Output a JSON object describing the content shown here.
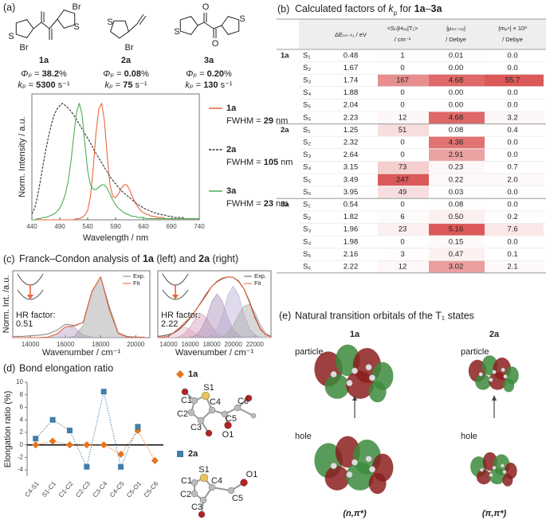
{
  "panel_labels": [
    "(a)",
    "(b)",
    "(c)",
    "(d)",
    "(e)"
  ],
  "panel_a": {
    "compounds": [
      {
        "label": "1a",
        "atoms": [
          "Br",
          "S",
          "S",
          "Br"
        ],
        "phi_symbol": "Φₚ",
        "phi_eq": " = ",
        "phi": "38.2",
        "phi_unit": "%",
        "k_symbol": "kₚ",
        "k_eq": " = ",
        "k": "5300",
        "k_unit": " s⁻¹"
      },
      {
        "label": "2a",
        "atoms": [
          "S",
          "Br"
        ],
        "phi_symbol": "Φₚ",
        "phi_eq": " = ",
        "phi": "0.08",
        "phi_unit": "%",
        "k_symbol": "kₚ",
        "k_eq": " = ",
        "k": "75",
        "k_unit": " s⁻¹"
      },
      {
        "label": "3a",
        "atoms": [
          "O",
          "S",
          "S",
          "O"
        ],
        "phi_symbol": "Φₚ",
        "phi_eq": " = ",
        "phi": "0.20",
        "phi_unit": "%",
        "k_symbol": "kₚ",
        "k_eq": " = ",
        "k": "130",
        "k_unit": " s⁻¹"
      }
    ]
  },
  "table": {
    "title_parts": [
      "Calculated factors of ",
      "k",
      "p",
      " for ",
      "1a",
      "–",
      "3a"
    ],
    "columns": [
      {
        "line1": "ΔEₛₙ₋ₜ₁ / eV"
      },
      {
        "line1": "<Sₙ|Hₛₒ|T₁>",
        "line2": "/ cm⁻¹"
      },
      {
        "line1": "|μₛₙ₋ₛ₀|",
        "line2": "/ Debye"
      },
      {
        "line1": "|mₚⁿ| × 10³",
        "line2": "/ Debye"
      }
    ],
    "groups": [
      {
        "label": "1a",
        "rows": [
          [
            "S₁",
            "0.48",
            "1",
            "0.01",
            "0.0"
          ],
          [
            "S₂",
            "1.67",
            "0",
            "0.00",
            "0.0"
          ],
          [
            "S₃",
            "1.74",
            "167",
            "4.68",
            "55.7"
          ],
          [
            "S₄",
            "1.88",
            "0",
            "0.00",
            "0.0"
          ],
          [
            "S₅",
            "2.04",
            "0",
            "0.00",
            "0.0"
          ],
          [
            "S₆",
            "2.23",
            "12",
            "4.68",
            "3.2"
          ]
        ]
      },
      {
        "label": "2a",
        "rows": [
          [
            "S₁",
            "1.25",
            "51",
            "0.08",
            "0.4"
          ],
          [
            "S₂",
            "2.32",
            "0",
            "4.36",
            "0.0"
          ],
          [
            "S₃",
            "2.64",
            "0",
            "2.91",
            "0.0"
          ],
          [
            "S₄",
            "3.15",
            "73",
            "0.23",
            "0.7"
          ],
          [
            "S₅",
            "3.49",
            "247",
            "0.22",
            "2.0"
          ],
          [
            "S₆",
            "3.95",
            "49",
            "0.03",
            "0.0"
          ]
        ]
      },
      {
        "label": "3a",
        "rows": [
          [
            "S₁",
            "0.54",
            "0",
            "0.08",
            "0.0"
          ],
          [
            "S₂",
            "1.82",
            "6",
            "0.50",
            "0.2"
          ],
          [
            "S₃",
            "1.96",
            "23",
            "5.16",
            "7.6"
          ],
          [
            "S₄",
            "1.98",
            "0",
            "0.15",
            "0.0"
          ],
          [
            "S₅",
            "2.16",
            "3",
            "0.47",
            "0.1"
          ],
          [
            "S₆",
            "2.22",
            "12",
            "3.02",
            "2.1"
          ]
        ]
      }
    ]
  },
  "panel_c": {
    "title_parts": [
      "Franck–Condon analysis of ",
      "1a",
      " (left) and ",
      "2a",
      " (right)"
    ],
    "hr_label": "HR factor:",
    "hr_values": [
      0.51,
      2.22
    ]
  },
  "panel_d": {
    "title": "Bond elongation ratio",
    "atoms_1a": [
      "C1",
      "S1",
      "C2",
      "C3",
      "C4",
      "C5",
      "C6",
      "O1"
    ],
    "atoms_2a": [
      "S1",
      "C1",
      "C4",
      "C2",
      "C3",
      "C5",
      "O1"
    ]
  },
  "panel_e": {
    "title": "Natural transition orbitals of the T₁ states",
    "columns": [
      {
        "label": "1a",
        "particle": "particle",
        "hole": "hole",
        "character": "(n,π*)"
      },
      {
        "label": "2a",
        "particle": "particle",
        "hole": "hole",
        "character": "(π,π*)"
      }
    ]
  },
  "chart_data": [
    {
      "type": "line",
      "xlabel": "Wavelength / nm",
      "ylabel": "Norm. Intensity / a.u.",
      "x": [
        440,
        445,
        450,
        455,
        460,
        465,
        470,
        475,
        480,
        485,
        490,
        495,
        500,
        505,
        510,
        515,
        520,
        525,
        530,
        535,
        540,
        545,
        550,
        555,
        560,
        565,
        570,
        575,
        580,
        585,
        590,
        595,
        600,
        605,
        610,
        615,
        620,
        625,
        630,
        635,
        640,
        645,
        650,
        655,
        660,
        665,
        670,
        675,
        680,
        685,
        690,
        695,
        700,
        705,
        710,
        715,
        720,
        725,
        730,
        735,
        740
      ],
      "xlim": [
        440,
        740
      ],
      "xticks": [
        440,
        490,
        540,
        590,
        640,
        690,
        740
      ],
      "ylim": [
        0,
        1.08
      ],
      "series": [
        {
          "name": "1a",
          "color": "#e8663c",
          "line_style": "solid",
          "legend_text": "FWHM = ",
          "fwhm": 29,
          "fwhm_unit": " nm",
          "values": [
            0,
            0,
            0,
            0,
            0,
            0,
            0,
            0,
            0,
            0,
            0,
            0,
            0,
            0,
            0,
            0,
            0.01,
            0.01,
            0.02,
            0.04,
            0.08,
            0.2,
            0.45,
            0.75,
            0.95,
            1.0,
            0.85,
            0.55,
            0.3,
            0.2,
            0.19,
            0.22,
            0.27,
            0.3,
            0.3,
            0.26,
            0.2,
            0.15,
            0.11,
            0.08,
            0.06,
            0.05,
            0.04,
            0.03,
            0.03,
            0.02,
            0.02,
            0.02,
            0.01,
            0.01,
            0.01,
            0.01,
            0.01,
            0.01,
            0.01,
            0.01,
            0.01,
            0.01,
            0.01,
            0.01,
            0.01
          ]
        },
        {
          "name": "2a",
          "color": "#333333",
          "line_style": "dashed",
          "legend_text": "FWHM = ",
          "fwhm": 105,
          "fwhm_unit": " nm",
          "values": [
            0.05,
            0.1,
            0.2,
            0.33,
            0.47,
            0.6,
            0.72,
            0.82,
            0.9,
            0.95,
            0.98,
            1.0,
            0.98,
            0.96,
            0.93,
            0.9,
            0.86,
            0.82,
            0.78,
            0.74,
            0.7,
            0.66,
            0.61,
            0.57,
            0.53,
            0.49,
            0.45,
            0.41,
            0.37,
            0.34,
            0.31,
            0.28,
            0.25,
            0.23,
            0.21,
            0.19,
            0.17,
            0.15,
            0.13,
            0.12,
            0.1,
            0.09,
            0.08,
            0.07,
            0.06,
            0.05,
            0.05,
            0.04,
            0.04,
            0.03,
            0.03,
            0.02,
            0.02,
            0.02,
            0.02,
            0.01,
            0.01,
            0.01,
            0.01,
            0.01,
            0.01
          ]
        },
        {
          "name": "3a",
          "color": "#4caf50",
          "line_style": "solid",
          "legend_text": "FWHM = ",
          "fwhm": 23,
          "fwhm_unit": " nm",
          "values": [
            0,
            0,
            0.01,
            0.01,
            0.02,
            0.02,
            0.03,
            0.04,
            0.05,
            0.07,
            0.1,
            0.15,
            0.22,
            0.33,
            0.5,
            0.72,
            0.92,
            1.0,
            0.9,
            0.65,
            0.42,
            0.3,
            0.26,
            0.26,
            0.28,
            0.3,
            0.3,
            0.27,
            0.22,
            0.17,
            0.13,
            0.1,
            0.08,
            0.06,
            0.05,
            0.04,
            0.03,
            0.03,
            0.02,
            0.02,
            0.02,
            0.01,
            0.01,
            0.01,
            0.01,
            0.01,
            0.01,
            0.01,
            0.01,
            0.01,
            0.01,
            0.01,
            0.01,
            0.01,
            0.01,
            0.01,
            0.01,
            0.01,
            0.01,
            0.01,
            0.01
          ]
        }
      ]
    },
    {
      "type": "line",
      "xlabel": "Wavenumber / cm⁻¹",
      "ylabel": "Norm. Int. /a.u.",
      "x": [
        13000,
        13500,
        14000,
        14500,
        15000,
        15500,
        16000,
        16500,
        17000,
        17500,
        18000,
        18500,
        19000,
        19500,
        20000,
        20500
      ],
      "xlim": [
        13000,
        20800
      ],
      "xticks": [
        14000,
        16000,
        18000,
        20000
      ],
      "ylim": [
        0,
        1.1
      ],
      "series": [
        {
          "color": "#b39cc8",
          "fill": true,
          "values": [
            0,
            0,
            0,
            0,
            0.01,
            0.06,
            0.18,
            0.17,
            0.05,
            0.01,
            0,
            0,
            0,
            0,
            0,
            0
          ]
        },
        {
          "color": "#a0a0a0",
          "fill": true,
          "values": [
            0,
            0,
            0,
            0,
            0,
            0,
            0,
            0.02,
            0.2,
            0.75,
            1.0,
            0.45,
            0.07,
            0.01,
            0,
            0
          ]
        },
        {
          "name": "Exp.",
          "color": "#8a8a8a",
          "values": [
            0.02,
            0.02,
            0.03,
            0.04,
            0.06,
            0.12,
            0.22,
            0.2,
            0.25,
            0.75,
            1.0,
            0.5,
            0.08,
            0.02,
            0.01,
            0.01
          ]
        },
        {
          "name": "Fit",
          "color": "#e8663c",
          "values": [
            0,
            0,
            0,
            0,
            0.01,
            0.06,
            0.18,
            0.19,
            0.25,
            0.76,
            1.0,
            0.45,
            0.07,
            0.01,
            0,
            0
          ]
        }
      ]
    },
    {
      "type": "line",
      "xlabel": "Wavenumber / cm⁻¹",
      "x": [
        13000,
        13500,
        14000,
        14500,
        15000,
        15500,
        16000,
        16500,
        17000,
        17500,
        18000,
        18500,
        19000,
        19500,
        20000,
        20500,
        21000,
        21500,
        22000,
        22500,
        23000,
        23500
      ],
      "xlim": [
        13000,
        23500
      ],
      "xticks": [
        14000,
        16000,
        18000,
        20000,
        22000
      ],
      "ylim": [
        0,
        1.1
      ],
      "series": [
        {
          "color": "#e8b9c8",
          "fill": true,
          "values": [
            0,
            0.01,
            0.02,
            0.07,
            0.14,
            0.18,
            0.14,
            0.07,
            0.02,
            0.01,
            0,
            0,
            0,
            0,
            0,
            0,
            0,
            0,
            0,
            0,
            0,
            0
          ]
        },
        {
          "color": "#d49cb8",
          "fill": true,
          "values": [
            0,
            0,
            0,
            0,
            0.02,
            0.07,
            0.18,
            0.33,
            0.4,
            0.33,
            0.18,
            0.07,
            0.02,
            0,
            0,
            0,
            0,
            0,
            0,
            0,
            0,
            0
          ]
        },
        {
          "color": "#a98bb8",
          "fill": true,
          "values": [
            0,
            0,
            0,
            0,
            0,
            0,
            0,
            0.04,
            0.13,
            0.32,
            0.59,
            0.72,
            0.59,
            0.32,
            0.13,
            0.04,
            0,
            0,
            0,
            0,
            0,
            0
          ]
        },
        {
          "color": "#b8b0d4",
          "fill": true,
          "values": [
            0,
            0,
            0,
            0,
            0,
            0,
            0,
            0,
            0,
            0,
            0.05,
            0.15,
            0.38,
            0.7,
            0.85,
            0.7,
            0.38,
            0.15,
            0.05,
            0,
            0,
            0
          ]
        },
        {
          "color": "#a8a8a8",
          "fill": true,
          "values": [
            0,
            0,
            0,
            0,
            0,
            0,
            0,
            0,
            0,
            0,
            0,
            0,
            0.02,
            0.08,
            0.2,
            0.38,
            0.52,
            0.55,
            0.42,
            0.22,
            0.08,
            0.02
          ]
        },
        {
          "name": "Exp.",
          "color": "#555555",
          "values": [
            0.02,
            0.03,
            0.05,
            0.08,
            0.14,
            0.22,
            0.32,
            0.45,
            0.58,
            0.72,
            0.84,
            0.92,
            0.97,
            1.0,
            0.99,
            0.93,
            0.8,
            0.6,
            0.35,
            0.15,
            0.05,
            0.02
          ]
        },
        {
          "name": "Fit",
          "color": "#e8663c",
          "values": [
            0,
            0.01,
            0.02,
            0.09,
            0.16,
            0.25,
            0.33,
            0.45,
            0.57,
            0.7,
            0.84,
            0.93,
            0.98,
            1.0,
            0.99,
            0.92,
            0.8,
            0.58,
            0.33,
            0.14,
            0.05,
            0.01
          ]
        }
      ]
    },
    {
      "type": "line",
      "ylabel": "Elongation ratio (%)",
      "categories": [
        "C4-S1",
        "S1-C1",
        "C1-C2",
        "C2-C3",
        "C3-C4",
        "C4-C5",
        "C5-O1",
        "C5-C6"
      ],
      "ylim": [
        -5,
        10
      ],
      "yticks": [
        -4,
        -2,
        0,
        2,
        4,
        6,
        8,
        10
      ],
      "series": [
        {
          "name": "1a",
          "color": "#e8731e",
          "marker": "diamond",
          "line_style": "dotted",
          "values": [
            0,
            0.6,
            0,
            0,
            0,
            -1.5,
            2.3,
            -2.5
          ]
        },
        {
          "name": "2a",
          "color": "#3f7fa6",
          "marker": "square",
          "line_style": "dotted",
          "values": [
            1,
            4,
            2.3,
            -3.5,
            8.5,
            -3.5,
            2.9,
            null
          ]
        }
      ]
    }
  ]
}
